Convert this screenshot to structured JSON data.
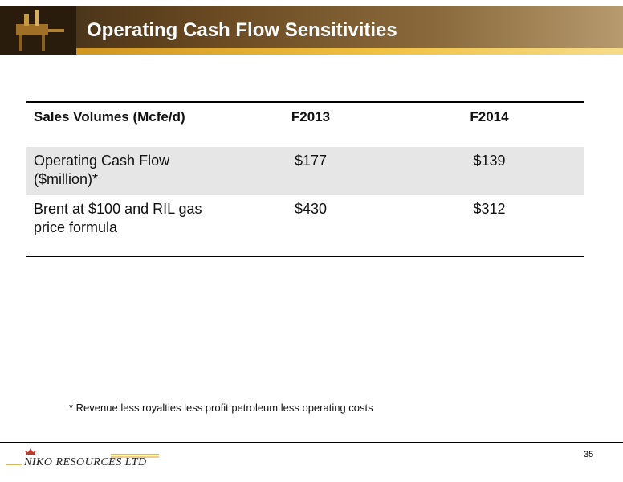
{
  "header": {
    "title": "Operating Cash Flow Sensitivities"
  },
  "table": {
    "header": [
      "Sales Volumes (Mcfe/d)",
      "F2013",
      "F2014"
    ],
    "rows": [
      [
        "Operating Cash Flow ($million)*",
        "$177",
        "$139"
      ],
      [
        "Brent at $100 and RIL gas price formula",
        "$430",
        "$312"
      ]
    ]
  },
  "footnote": "* Revenue less royalties less profit petroleum less operating costs",
  "footer": {
    "page_number": "35",
    "logo": "NIKO RESOURCES LTD"
  }
}
